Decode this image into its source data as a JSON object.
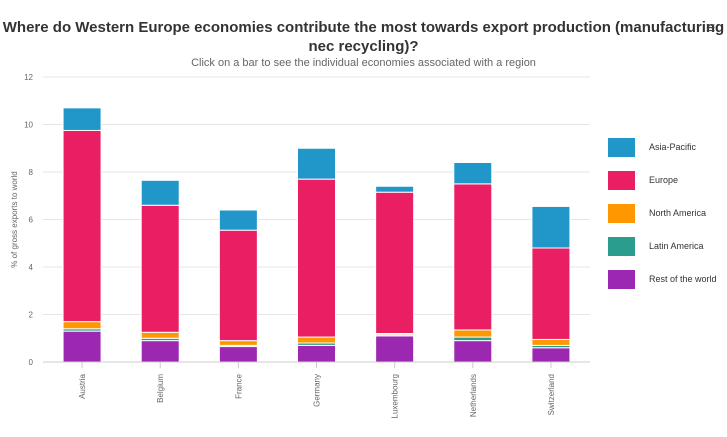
{
  "title": "Where do Western Europe economies contribute the most towards export production (manufacturing nec recycling)?",
  "subtitle": "Click on a bar to see the individual economies associated with a region",
  "menu_icon": "hamburger-menu-icon",
  "chart_data": {
    "type": "bar",
    "stacked": true,
    "ylabel": "% of gross exports to world",
    "xlabel": "",
    "ylim": [
      0,
      12
    ],
    "yticks": [
      0,
      2,
      4,
      6,
      8,
      10,
      12
    ],
    "grid": true,
    "legend_position": "right",
    "categories": [
      "Austria",
      "Belgium",
      "France",
      "Germany",
      "Luxembourg",
      "Netherlands",
      "Switzerland"
    ],
    "series": [
      {
        "name": "Rest of the world",
        "color": "#9c27b0",
        "values": [
          1.3,
          0.9,
          0.65,
          0.7,
          1.1,
          0.9,
          0.6
        ]
      },
      {
        "name": "Latin America",
        "color": "#2a9d8f",
        "values": [
          0.1,
          0.1,
          0.05,
          0.1,
          0.05,
          0.15,
          0.1
        ]
      },
      {
        "name": "North America",
        "color": "#ff9800",
        "values": [
          0.3,
          0.25,
          0.2,
          0.25,
          0.05,
          0.3,
          0.25
        ]
      },
      {
        "name": "Europe",
        "color": "#e91e63",
        "values": [
          8.05,
          5.35,
          4.65,
          6.65,
          5.95,
          6.15,
          3.85
        ]
      },
      {
        "name": "Asia-Pacific",
        "color": "#2196c9",
        "values": [
          0.95,
          1.05,
          0.85,
          1.3,
          0.25,
          0.9,
          1.75
        ]
      }
    ]
  },
  "legend_order": [
    "Asia-Pacific",
    "Europe",
    "North America",
    "Latin America",
    "Rest of the world"
  ]
}
